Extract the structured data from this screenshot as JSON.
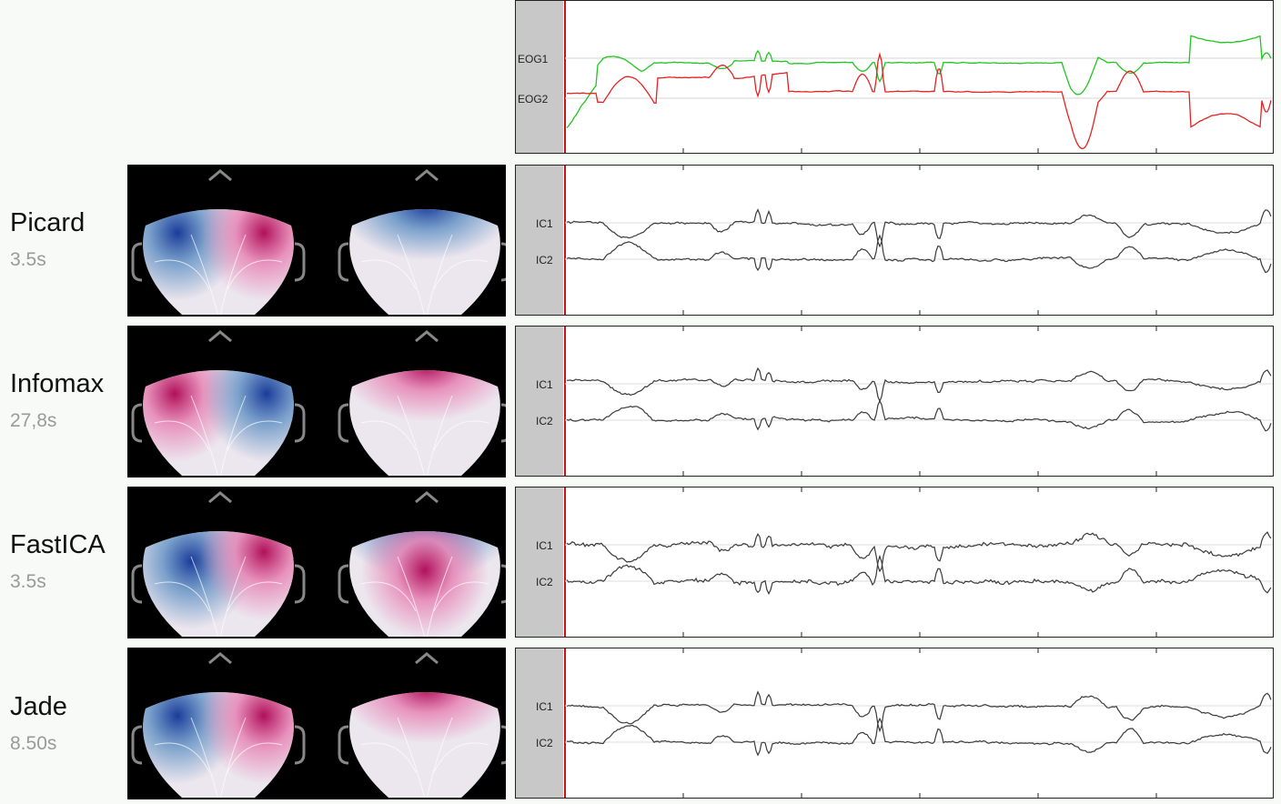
{
  "methods": [
    {
      "name": "Picard",
      "time": "3.5s"
    },
    {
      "name": "Infomax",
      "time": "27,8s"
    },
    {
      "name": "FastICA",
      "time": "3.5s"
    },
    {
      "name": "Jade",
      "time": "8.50s"
    }
  ],
  "eog_panel": {
    "channel_labels": [
      "EOG1",
      "EOG2"
    ],
    "colors": {
      "EOG1": "#22c422",
      "EOG2": "#e62222"
    }
  },
  "ic_panels": [
    {
      "channel_labels": [
        "IC1",
        "IC2"
      ]
    },
    {
      "channel_labels": [
        "IC1",
        "IC2"
      ]
    },
    {
      "channel_labels": [
        "IC1",
        "IC2"
      ]
    },
    {
      "channel_labels": [
        "IC1",
        "IC2"
      ]
    }
  ],
  "colors": {
    "trace": "#3a3a3a",
    "time_cursor": "#cc1111",
    "label_strip": "#c8c8c8",
    "topo_positive": "#b0105a",
    "topo_negative": "#1a3c9a"
  }
}
